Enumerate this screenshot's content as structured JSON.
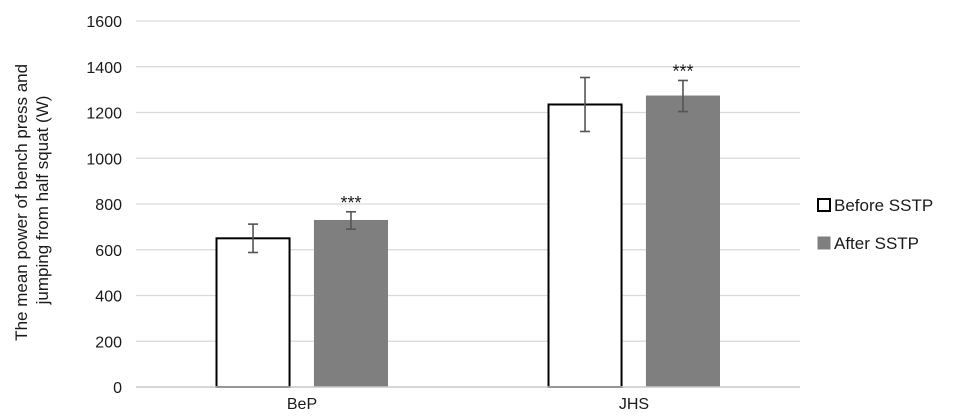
{
  "chart_data": {
    "type": "bar",
    "title": "",
    "xlabel": "",
    "ylabel_lines": [
      "The mean power of bench press and",
      "jumping from half squat (W)"
    ],
    "ylim": [
      0,
      1600
    ],
    "yticks": [
      0,
      200,
      400,
      600,
      800,
      1000,
      1200,
      1400,
      1600
    ],
    "grid": true,
    "legend_position": "right",
    "categories": [
      "BeP",
      "JHS"
    ],
    "series": [
      {
        "name": "Before SSTP",
        "values": [
          650,
          1235
        ],
        "errors": [
          62,
          118
        ],
        "fill": "#ffffff",
        "stroke": "#000000",
        "significance": [
          "",
          ""
        ]
      },
      {
        "name": "After SSTP",
        "values": [
          728,
          1272
        ],
        "errors": [
          38,
          68
        ],
        "fill": "#7f7f7f",
        "stroke": "#7f7f7f",
        "significance": [
          "***",
          "***"
        ]
      }
    ],
    "colors": {
      "grid": "#d9d9d9",
      "errorbar": "#555555",
      "text": "#1a1a1a"
    }
  }
}
